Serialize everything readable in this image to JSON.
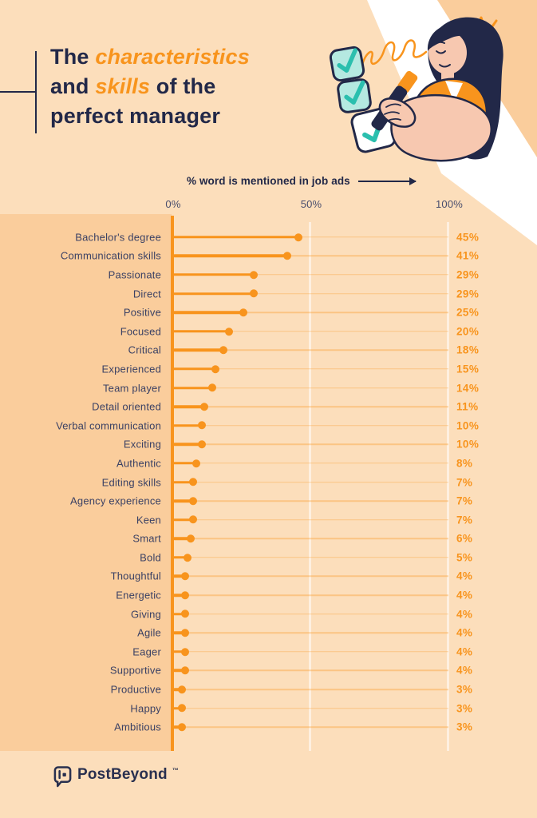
{
  "title": {
    "t1": "The ",
    "a1": "characteristics",
    "t2": "and ",
    "a2": "skills",
    "t3": " of the",
    "t4": "perfect manager"
  },
  "chart_data": {
    "type": "bar",
    "variant": "horizontal-lollipop",
    "title": "% word is mentioned in job ads",
    "xlabel": "% word is mentioned in job ads",
    "ylabel": "",
    "xlim": [
      0,
      100
    ],
    "grid": "vertical ticks at 0/50/100",
    "legend": "none",
    "unit": "%",
    "ticks": [
      "0%",
      "50%",
      "100%"
    ],
    "categories": [
      "Bachelor's degree",
      "Communication skills",
      "Passionate",
      "Direct",
      "Positive",
      "Focused",
      "Critical",
      "Experienced",
      "Team player",
      "Detail oriented",
      "Verbal communication",
      "Exciting",
      "Authentic",
      "Editing skills",
      "Agency experience",
      "Keen",
      "Smart",
      "Bold",
      "Thoughtful",
      "Energetic",
      "Giving",
      "Agile",
      "Eager",
      "Supportive",
      "Productive",
      "Happy",
      "Ambitious"
    ],
    "values": [
      45,
      41,
      29,
      29,
      25,
      20,
      18,
      15,
      14,
      11,
      10,
      10,
      8,
      7,
      7,
      7,
      6,
      5,
      4,
      4,
      4,
      4,
      4,
      4,
      3,
      3,
      3
    ]
  },
  "footer": {
    "brand": "PostBeyond",
    "trademark": "™"
  },
  "icons": {
    "arrow": "arrow-right-icon",
    "checkboxes": "checked-checkbox-icons",
    "logo": "postbeyond-speech-bubble-icon"
  },
  "colors": {
    "accent_orange": "#F8941D",
    "navy": "#222848",
    "label_navy": "#3B4164",
    "page_bg": "#FCDEBB",
    "label_panel_bg": "#FACD9C",
    "corner_band": "#FACD9C",
    "stripe_white": "#FFFFFF",
    "teal_check": "#2BBFAE",
    "teal_box": "#B5E9E1",
    "skin": "#F7C8B0"
  }
}
